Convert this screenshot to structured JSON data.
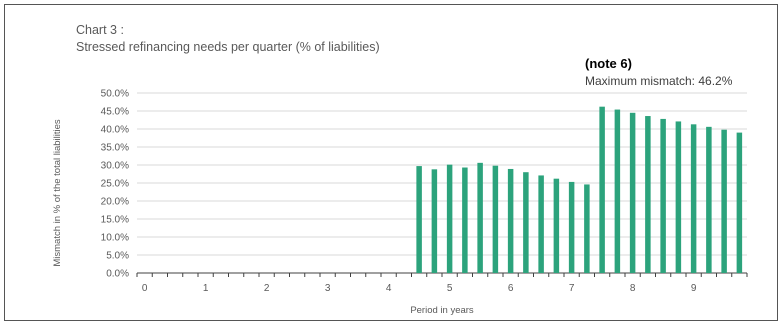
{
  "title_line1": "Chart 3 :",
  "title_line2": "Stressed refinancing needs per quarter  (% of liabilities)",
  "annotation": {
    "label": "(note 6)",
    "text": "Maximum mismatch: 46.2%"
  },
  "colors": {
    "bar": "#2ca37c",
    "grid": "#d9d9d9",
    "axis": "#404040"
  },
  "chart_data": {
    "type": "bar",
    "xlabel": "Period in years",
    "ylabel": "Mismatch in % of the total liabilities",
    "ylim": [
      0,
      50
    ],
    "yticks": [
      "0.0%",
      "5.0%",
      "10.0%",
      "15.0%",
      "20.0%",
      "25.0%",
      "30.0%",
      "35.0%",
      "40.0%",
      "45.0%",
      "50.0%"
    ],
    "xtick_labels": [
      "0",
      "1",
      "2",
      "3",
      "4",
      "5",
      "6",
      "7",
      "8",
      "9"
    ],
    "grid": true,
    "categories_per_year": 4,
    "values": [
      0,
      0,
      0,
      0,
      0,
      0,
      0,
      0,
      0,
      0,
      0,
      0,
      0,
      0,
      0,
      0,
      0,
      0,
      29.7,
      28.8,
      30.1,
      29.3,
      30.6,
      29.8,
      28.9,
      28.0,
      27.1,
      26.2,
      25.3,
      24.6,
      46.2,
      45.4,
      44.5,
      43.6,
      42.8,
      42.1,
      41.3,
      40.6,
      39.8,
      39.0
    ]
  }
}
